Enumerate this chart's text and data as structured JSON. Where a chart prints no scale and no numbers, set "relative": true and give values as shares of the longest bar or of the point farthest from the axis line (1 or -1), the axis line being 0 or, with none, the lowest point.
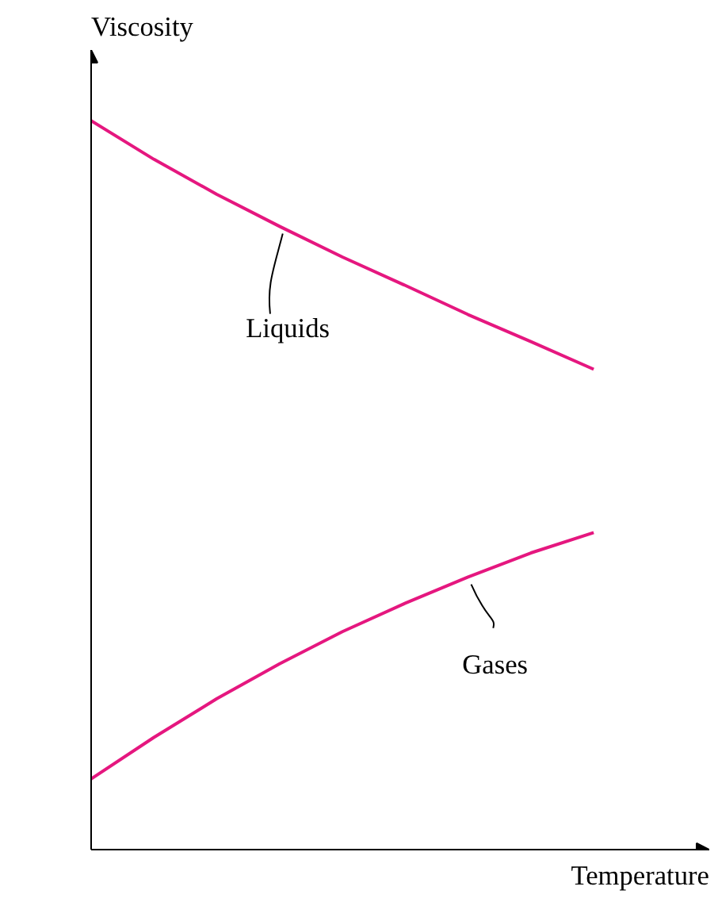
{
  "chart_data": {
    "type": "line",
    "relative": true,
    "xlabel": "Temperature",
    "ylabel": "Viscosity",
    "categories": [
      null,
      null,
      null,
      null,
      null,
      null,
      null,
      null,
      null
    ],
    "marker": "none",
    "line_style": "solid",
    "series": [
      {
        "name": "Liquids",
        "color": "#e5177f",
        "values": [
          1,
          0.947,
          0.899,
          0.855,
          0.813,
          0.774,
          0.734,
          0.697,
          0.659
        ]
      },
      {
        "name": "Gases",
        "color": "#e5177f",
        "values": [
          0.097,
          0.154,
          0.207,
          0.255,
          0.299,
          0.338,
          0.374,
          0.407,
          0.435
        ]
      }
    ]
  }
}
